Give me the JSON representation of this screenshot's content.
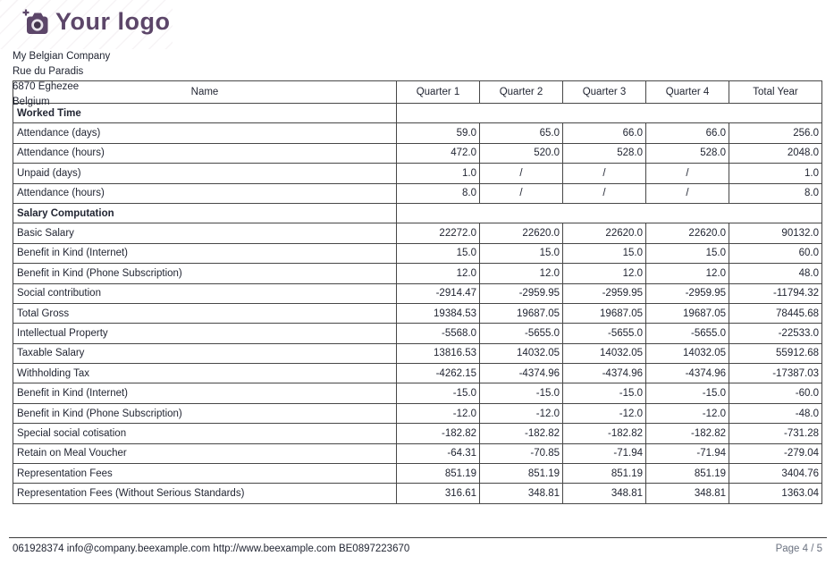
{
  "brand": {
    "logo_text": "Your logo",
    "logo_color": "#5c4669",
    "icon": "camera-icon"
  },
  "company": {
    "lines": [
      "My Belgian Company",
      "Rue du Paradis",
      "6870 Eghezee",
      "Belgium"
    ]
  },
  "table": {
    "headers": [
      "Name",
      "Quarter 1",
      "Quarter 2",
      "Quarter 3",
      "Quarter 4",
      "Total Year"
    ],
    "rows": [
      {
        "type": "section",
        "label": "Worked Time"
      },
      {
        "type": "data",
        "label": "Attendance (days)",
        "values": [
          "59.0",
          "65.0",
          "66.0",
          "66.0",
          "256.0"
        ]
      },
      {
        "type": "data",
        "label": "Attendance (hours)",
        "values": [
          "472.0",
          "520.0",
          "528.0",
          "528.0",
          "2048.0"
        ]
      },
      {
        "type": "data",
        "label": "Unpaid (days)",
        "values": [
          "1.0",
          "/",
          "/",
          "/",
          "1.0"
        ]
      },
      {
        "type": "data",
        "label": "Attendance (hours)",
        "values": [
          "8.0",
          "/",
          "/",
          "/",
          "8.0"
        ]
      },
      {
        "type": "section",
        "label": "Salary Computation"
      },
      {
        "type": "data",
        "label": "Basic Salary",
        "values": [
          "22272.0",
          "22620.0",
          "22620.0",
          "22620.0",
          "90132.0"
        ]
      },
      {
        "type": "data",
        "label": "Benefit in Kind (Internet)",
        "values": [
          "15.0",
          "15.0",
          "15.0",
          "15.0",
          "60.0"
        ]
      },
      {
        "type": "data",
        "label": "Benefit in Kind (Phone Subscription)",
        "values": [
          "12.0",
          "12.0",
          "12.0",
          "12.0",
          "48.0"
        ]
      },
      {
        "type": "data",
        "label": "Social contribution",
        "values": [
          "-2914.47",
          "-2959.95",
          "-2959.95",
          "-2959.95",
          "-11794.32"
        ]
      },
      {
        "type": "data",
        "label": "Total Gross",
        "values": [
          "19384.53",
          "19687.05",
          "19687.05",
          "19687.05",
          "78445.68"
        ]
      },
      {
        "type": "data",
        "label": "Intellectual Property",
        "values": [
          "-5568.0",
          "-5655.0",
          "-5655.0",
          "-5655.0",
          "-22533.0"
        ]
      },
      {
        "type": "data",
        "label": "Taxable Salary",
        "values": [
          "13816.53",
          "14032.05",
          "14032.05",
          "14032.05",
          "55912.68"
        ]
      },
      {
        "type": "data",
        "label": "Withholding Tax",
        "values": [
          "-4262.15",
          "-4374.96",
          "-4374.96",
          "-4374.96",
          "-17387.03"
        ]
      },
      {
        "type": "data",
        "label": "Benefit in Kind (Internet)",
        "values": [
          "-15.0",
          "-15.0",
          "-15.0",
          "-15.0",
          "-60.0"
        ]
      },
      {
        "type": "data",
        "label": "Benefit in Kind (Phone Subscription)",
        "values": [
          "-12.0",
          "-12.0",
          "-12.0",
          "-12.0",
          "-48.0"
        ]
      },
      {
        "type": "data",
        "label": "Special social cotisation",
        "values": [
          "-182.82",
          "-182.82",
          "-182.82",
          "-182.82",
          "-731.28"
        ]
      },
      {
        "type": "data",
        "label": "Retain on Meal Voucher",
        "values": [
          "-64.31",
          "-70.85",
          "-71.94",
          "-71.94",
          "-279.04"
        ]
      },
      {
        "type": "data",
        "label": "Representation Fees",
        "values": [
          "851.19",
          "851.19",
          "851.19",
          "851.19",
          "3404.76"
        ]
      },
      {
        "type": "data",
        "label": "Representation Fees (Without Serious Standards)",
        "values": [
          "316.61",
          "348.81",
          "348.81",
          "348.81",
          "1363.04"
        ]
      }
    ]
  },
  "footer": {
    "contact": "061928374 info@company.beexample.com http://www.beexample.com BE0897223670",
    "page": "Page 4 / 5"
  }
}
